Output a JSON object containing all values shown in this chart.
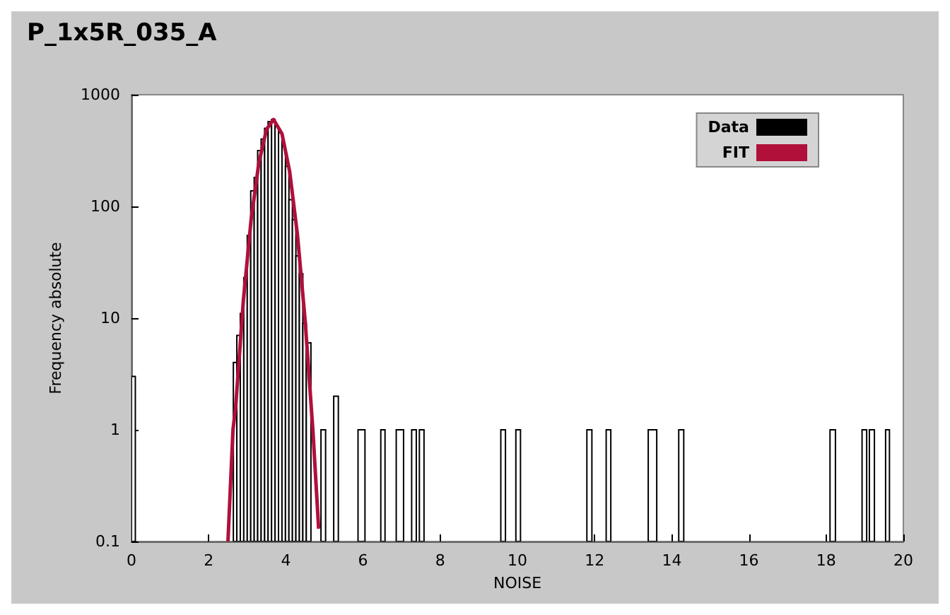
{
  "chart_data": {
    "type": "histogram",
    "title": "P_1x5R_035_A",
    "xlabel": "NOISE",
    "ylabel": "Frequency absolute",
    "bins": [
      0,
      0.1,
      2.64,
      2.73,
      2.82,
      2.91,
      3.0,
      3.09,
      3.18,
      3.27,
      3.36,
      3.45,
      3.54,
      3.63,
      3.72,
      3.81,
      3.9,
      3.99,
      4.08,
      4.17,
      4.26,
      4.35,
      4.44,
      4.53,
      4.65,
      4.91,
      5.03,
      5.24,
      5.36,
      5.87,
      6.05,
      6.46,
      6.57,
      6.86,
      7.05,
      7.26,
      7.38,
      7.46,
      7.58,
      9.57,
      9.69,
      9.96,
      10.08,
      11.8,
      11.93,
      12.3,
      12.42,
      13.39,
      13.61,
      14.18,
      14.31,
      18.1,
      18.24,
      18.93,
      19.05,
      19.12,
      19.25,
      19.54,
      19.64
    ],
    "series": [
      {
        "name": "Data",
        "color": "#000000",
        "values": [
          3,
          null,
          4,
          7,
          11,
          23,
          55,
          138,
          182,
          316,
          400,
          500,
          575,
          600,
          525,
          457,
          347,
          229,
          115,
          76,
          36,
          25,
          9,
          6,
          null,
          1,
          null,
          2,
          null,
          1,
          null,
          1,
          null,
          1,
          null,
          1,
          null,
          1,
          null,
          1,
          null,
          1,
          null,
          1,
          null,
          1,
          null,
          1,
          null,
          1,
          null,
          1,
          null,
          1,
          null,
          1,
          null,
          1
        ]
      },
      {
        "name": "FIT",
        "type": "line",
        "color": "#b0103a",
        "x": [
          2.5,
          2.63,
          2.7,
          2.9,
          3.1,
          3.3,
          3.5,
          3.68,
          3.9,
          4.1,
          4.3,
          4.5,
          4.7,
          4.85
        ],
        "values": [
          0.1,
          1,
          1.6,
          14.5,
          76,
          245,
          490,
          600,
          447,
          204,
          56,
          9.5,
          1,
          0.13
        ]
      }
    ],
    "xlim": [
      0,
      20
    ],
    "xticks": [
      0,
      2,
      4,
      6,
      8,
      10,
      12,
      14,
      16,
      18,
      20
    ],
    "ylim": [
      0.1,
      1000
    ],
    "yticks": [
      0.1,
      1,
      10,
      100,
      1000
    ],
    "log": true,
    "grid": false,
    "legend": "top right"
  }
}
